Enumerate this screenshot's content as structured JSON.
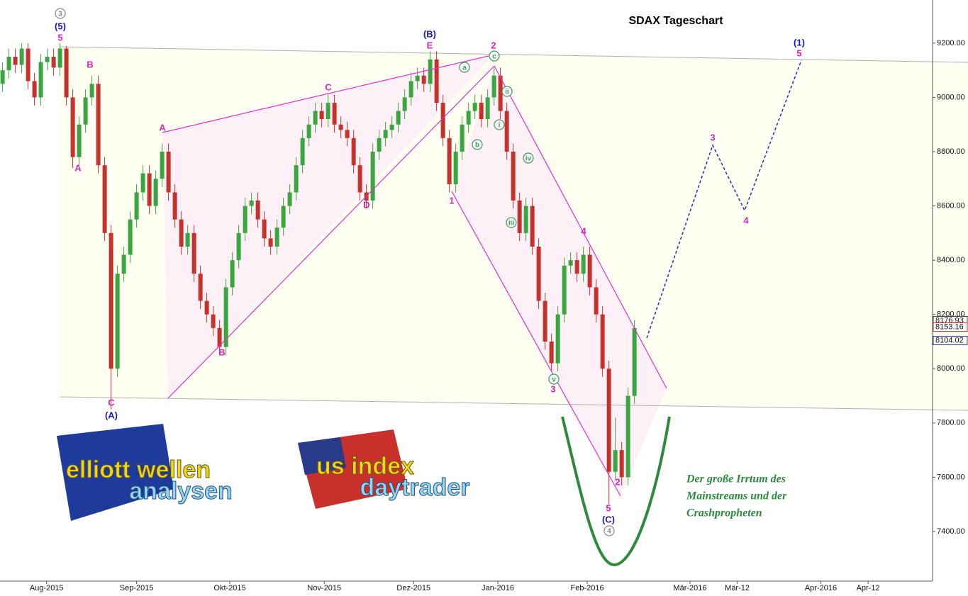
{
  "chart_data": {
    "type": "candlestick",
    "title": "SDAX Tageschart",
    "x": [
      0,
      1,
      2,
      3,
      4,
      5,
      6,
      7,
      8,
      9,
      10,
      11,
      12,
      13,
      14,
      15,
      16,
      17,
      18,
      19,
      20,
      21,
      22,
      23,
      24,
      25,
      26,
      27,
      28,
      29,
      30,
      31,
      32,
      33,
      34,
      35,
      36,
      37,
      38,
      39,
      40,
      41,
      42,
      43,
      44,
      45,
      46,
      47,
      48,
      49,
      50,
      51,
      52,
      53,
      54,
      55,
      56,
      57,
      58,
      59,
      60,
      61,
      62,
      63,
      64,
      65,
      66,
      67,
      68,
      69,
      70,
      71,
      72,
      73,
      74,
      75,
      76,
      77,
      78,
      79,
      80,
      81,
      82,
      83,
      84,
      85,
      86,
      87,
      88,
      89,
      90,
      91,
      92,
      93,
      94,
      95,
      96,
      97,
      98,
      99
    ],
    "open": [
      9050,
      9100,
      9150,
      9120,
      9180,
      9060,
      9000,
      9130,
      9150,
      9110,
      9180,
      9000,
      8780,
      8900,
      9000,
      9050,
      8750,
      8500,
      8000,
      8350,
      8420,
      8550,
      8650,
      8720,
      8600,
      8700,
      8800,
      8650,
      8550,
      8450,
      8500,
      8350,
      8250,
      8200,
      8150,
      8080,
      8300,
      8400,
      8500,
      8600,
      8620,
      8550,
      8480,
      8450,
      8520,
      8600,
      8650,
      8750,
      8850,
      8900,
      8950,
      8920,
      8980,
      8900,
      8880,
      8850,
      8750,
      8650,
      8620,
      8800,
      8850,
      8880,
      8900,
      8950,
      9000,
      9060,
      9080,
      9050,
      9140,
      8980,
      8850,
      8680,
      8800,
      8900,
      8950,
      8980,
      8920,
      9000,
      9080,
      8950,
      8800,
      8620,
      8500,
      8600,
      8450,
      8250,
      8100,
      8020,
      8200,
      8380,
      8400,
      8350,
      8420,
      8300,
      8200,
      8000,
      7620,
      7700,
      7600,
      7900
    ],
    "high": [
      9130,
      9180,
      9180,
      9200,
      9200,
      9090,
      9160,
      9180,
      9180,
      9200,
      9190,
      9030,
      8930,
      9030,
      9080,
      9080,
      8780,
      8530,
      8380,
      8450,
      8580,
      8680,
      8750,
      8750,
      8730,
      8830,
      8830,
      8680,
      8580,
      8530,
      8530,
      8380,
      8280,
      8230,
      8180,
      8330,
      8430,
      8530,
      8630,
      8650,
      8650,
      8580,
      8510,
      8550,
      8630,
      8680,
      8780,
      8880,
      8930,
      8980,
      8980,
      9010,
      9010,
      8930,
      8910,
      8880,
      8780,
      8680,
      8830,
      8880,
      8910,
      8930,
      8980,
      9030,
      9090,
      9110,
      9110,
      9170,
      9170,
      9010,
      8880,
      8830,
      8930,
      8980,
      9010,
      9010,
      9030,
      9110,
      9110,
      8980,
      8830,
      8650,
      8630,
      8630,
      8480,
      8280,
      8130,
      8230,
      8410,
      8430,
      8430,
      8450,
      8450,
      8330,
      8230,
      8030,
      7820,
      7730,
      7930,
      8180
    ],
    "low": [
      9020,
      9070,
      9090,
      9090,
      9030,
      8970,
      8970,
      9100,
      9080,
      9080,
      8970,
      8740,
      8750,
      8870,
      8970,
      8720,
      8470,
      7850,
      7970,
      8320,
      8390,
      8520,
      8620,
      8570,
      8570,
      8670,
      8620,
      8520,
      8420,
      8420,
      8320,
      8220,
      8170,
      8120,
      8050,
      8050,
      8270,
      8370,
      8470,
      8570,
      8520,
      8450,
      8420,
      8420,
      8490,
      8570,
      8620,
      8720,
      8820,
      8870,
      8890,
      8890,
      8870,
      8850,
      8820,
      8720,
      8620,
      8590,
      8590,
      8770,
      8820,
      8850,
      8870,
      8920,
      8970,
      9030,
      9020,
      9020,
      8950,
      8820,
      8650,
      8650,
      8770,
      8870,
      8920,
      8890,
      8890,
      8970,
      8920,
      8770,
      8590,
      8470,
      8470,
      8420,
      8220,
      8070,
      7990,
      7990,
      8170,
      8350,
      8320,
      8320,
      8270,
      8170,
      7970,
      7500,
      7590,
      7570,
      7570,
      7870
    ],
    "close": [
      9100,
      9150,
      9120,
      9180,
      9060,
      9000,
      9130,
      9150,
      9110,
      9180,
      9000,
      8780,
      8900,
      9000,
      9050,
      8750,
      8500,
      8000,
      8350,
      8420,
      8550,
      8650,
      8720,
      8600,
      8700,
      8800,
      8650,
      8550,
      8450,
      8500,
      8350,
      8250,
      8200,
      8150,
      8080,
      8300,
      8400,
      8500,
      8600,
      8620,
      8550,
      8480,
      8450,
      8520,
      8600,
      8650,
      8750,
      8850,
      8900,
      8950,
      8920,
      8980,
      8900,
      8880,
      8850,
      8750,
      8650,
      8620,
      8800,
      8850,
      8880,
      8900,
      8950,
      9000,
      9060,
      9080,
      9050,
      9140,
      8980,
      8850,
      8680,
      8800,
      8900,
      8950,
      8980,
      8920,
      9000,
      9080,
      8950,
      8800,
      8620,
      8500,
      8600,
      8450,
      8250,
      8100,
      8020,
      8200,
      8380,
      8400,
      8350,
      8420,
      8300,
      8200,
      8000,
      7620,
      7700,
      7600,
      7900,
      8150
    ],
    "up_color": "#3aa63f",
    "down_color": "#c6322b",
    "xlim": [
      -0.4,
      145.7
    ],
    "ylim": [
      7217,
      9359
    ],
    "xticks": [
      {
        "value": 6.9,
        "label": "Aug-2015"
      },
      {
        "value": 21,
        "label": "Sep-2015"
      },
      {
        "value": 35.6,
        "label": "Okt-2015"
      },
      {
        "value": 50.4,
        "label": "Nov-2015"
      },
      {
        "value": 64.4,
        "label": "Dez-2015"
      },
      {
        "value": 77.6,
        "label": "Jan-2016"
      },
      {
        "value": 91.6,
        "label": "Feb-2016"
      },
      {
        "value": 107.7,
        "label": "Mär-2016"
      },
      {
        "value": 115.1,
        "label": "Mär-12"
      },
      {
        "value": 128.2,
        "label": "Apr-2016"
      },
      {
        "value": 135.6,
        "label": "Apr-12"
      }
    ],
    "yticks": [
      {
        "value": 7400,
        "label": "7400.00"
      },
      {
        "value": 7600,
        "label": "7600.00"
      },
      {
        "value": 7800,
        "label": "7800.00"
      },
      {
        "value": 8000,
        "label": "8000.00"
      },
      {
        "value": 8200,
        "label": "8200.00"
      },
      {
        "value": 8400,
        "label": "8400.00"
      },
      {
        "value": 8600,
        "label": "8600.00"
      },
      {
        "value": 8800,
        "label": "8800.00"
      },
      {
        "value": 9000,
        "label": "9000.00"
      },
      {
        "value": 9200,
        "label": "9200.00"
      }
    ],
    "price_tags": [
      {
        "value": 8176.93,
        "label": "8176.93",
        "color": "#444444"
      },
      {
        "value": 8153.16,
        "label": "8153.16",
        "color": "#c6322b"
      },
      {
        "value": 8104.02,
        "label": "8104.02",
        "color": "#2a3aa0"
      }
    ],
    "annotations": [
      {
        "text": "3",
        "color": "#888888",
        "circled": true
      },
      {
        "text": "(5)",
        "color": "#1a1ab0"
      },
      {
        "text": "5",
        "color": "#e020c0"
      },
      {
        "text": "B",
        "color": "#e020c0"
      },
      {
        "text": "A",
        "color": "#e020c0"
      },
      {
        "text": "C",
        "color": "#e020c0"
      },
      {
        "text": "(A)",
        "color": "#1a1ab0"
      },
      {
        "text": "A",
        "color": "#e020c0"
      },
      {
        "text": "B",
        "color": "#e020c0"
      },
      {
        "text": "C",
        "color": "#e020c0"
      },
      {
        "text": "D",
        "color": "#e020c0"
      },
      {
        "text": "(B)",
        "color": "#1a1ab0"
      },
      {
        "text": "E",
        "color": "#e020c0"
      },
      {
        "text": "2",
        "color": "#e020c0"
      },
      {
        "text": "c",
        "color": "#3a9a5a",
        "circled": true
      },
      {
        "text": "a",
        "color": "#3a9a5a",
        "circled": true
      },
      {
        "text": "b",
        "color": "#3a9a5a",
        "circled": true
      },
      {
        "text": "ii",
        "color": "#3a9a5a",
        "circled": true
      },
      {
        "text": "i",
        "color": "#3a9a5a",
        "circled": true
      },
      {
        "text": "1",
        "color": "#e020c0"
      },
      {
        "text": "iii",
        "color": "#3a9a5a",
        "circled": true
      },
      {
        "text": "iv",
        "color": "#3a9a5a",
        "circled": true
      },
      {
        "text": "v",
        "color": "#3a9a5a",
        "circled": true
      },
      {
        "text": "3",
        "color": "#e020c0"
      },
      {
        "text": "4",
        "color": "#e020c0"
      },
      {
        "text": "5",
        "color": "#e020c0"
      },
      {
        "text": "(C)",
        "color": "#1a1ab0"
      },
      {
        "text": "4",
        "color": "#888888",
        "circled": true
      },
      {
        "text": "2",
        "color": "#e020c0"
      },
      {
        "text": "3",
        "color": "#e020c0"
      },
      {
        "text": "4",
        "color": "#e020c0"
      },
      {
        "text": "(1)",
        "color": "#1a1ab0"
      },
      {
        "text": "5",
        "color": "#e020c0"
      }
    ],
    "logo_left": [
      "elliott wellen",
      "analysen"
    ],
    "logo_right": [
      "us index",
      "daytrader"
    ],
    "comment": [
      "Der große Irrtum des",
      "Mainstreams und der",
      "Crashpropheten"
    ]
  }
}
